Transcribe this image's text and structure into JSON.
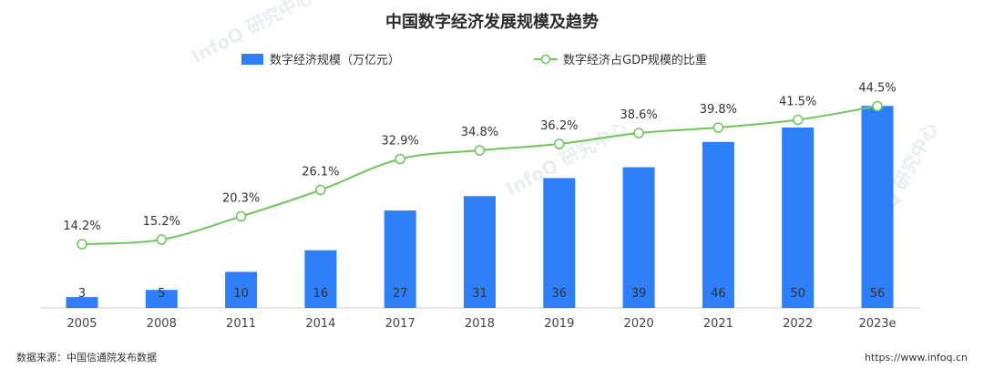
{
  "footer": {
    "source": "数据来源：中国信通院发布数据",
    "url": "https://www.infoq.cn"
  },
  "watermark": "InfoQ 研究中心",
  "chart_data": {
    "type": "bar",
    "title": "中国数字经济发展规模及趋势",
    "categories": [
      "2005",
      "2008",
      "2011",
      "2014",
      "2017",
      "2018",
      "2019",
      "2020",
      "2021",
      "2022",
      "2023e"
    ],
    "series": [
      {
        "name": "数字经济规模（万亿元）",
        "type": "bar",
        "color": "#2e7ef7",
        "values": [
          3,
          5,
          10,
          16,
          27,
          31,
          36,
          39,
          46,
          50,
          56
        ]
      },
      {
        "name": "数字经济占GDP规模的比重",
        "type": "line",
        "color": "#6cc857",
        "values": [
          14.2,
          15.2,
          20.3,
          26.1,
          32.9,
          34.8,
          36.2,
          38.6,
          39.8,
          41.5,
          44.5
        ],
        "labels": [
          "14.2%",
          "15.2%",
          "20.3%",
          "26.1%",
          "32.9%",
          "34.8%",
          "36.2%",
          "38.6%",
          "39.8%",
          "41.5%",
          "44.5%"
        ]
      }
    ],
    "legend_position": "top-center",
    "grid": false
  }
}
